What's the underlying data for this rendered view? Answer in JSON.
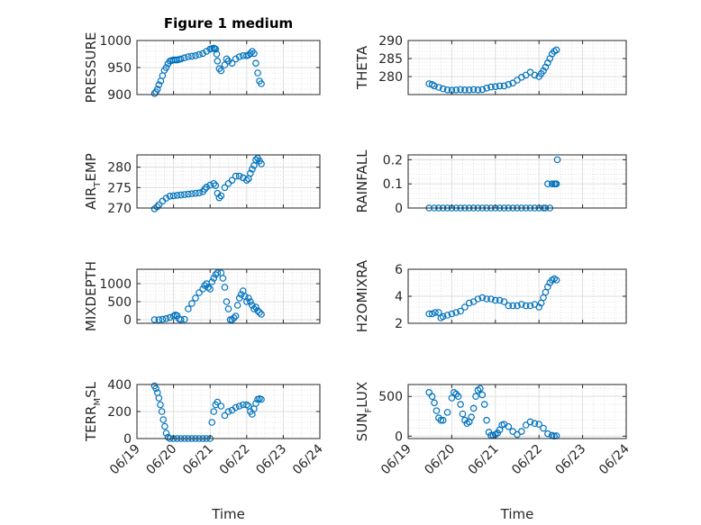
{
  "chart_data": [
    {
      "type": "scatter",
      "title": "Figure 1 medium",
      "ylabel": "PRESSURE",
      "ylim": [
        900,
        1000
      ],
      "yticks": [
        "900",
        "950",
        "1000"
      ],
      "yticks_values": [
        900,
        950,
        1000
      ],
      "x": [
        0.48,
        0.52,
        0.56,
        0.6,
        0.65,
        0.7,
        0.75,
        0.8,
        0.85,
        0.9,
        0.95,
        1.0,
        1.05,
        1.1,
        1.15,
        1.2,
        1.3,
        1.4,
        1.5,
        1.6,
        1.7,
        1.8,
        1.9,
        2.0,
        2.05,
        2.1,
        2.12,
        2.15,
        2.18,
        2.2,
        2.25,
        2.3,
        2.4,
        2.45,
        2.5,
        2.6,
        2.7,
        2.8,
        2.9,
        3.0,
        3.05,
        3.1,
        3.15,
        3.2,
        3.25,
        3.3,
        3.35,
        3.4
      ],
      "y": [
        902,
        905,
        910,
        918,
        925,
        935,
        945,
        950,
        957,
        962,
        963,
        964,
        964,
        964,
        965,
        966,
        968,
        970,
        971,
        972,
        974,
        976,
        980,
        984,
        985,
        986,
        985,
        984,
        975,
        962,
        948,
        944,
        955,
        966,
        962,
        958,
        966,
        970,
        972,
        972,
        973,
        976,
        980,
        976,
        958,
        940,
        925,
        920
      ],
      "color": "#0072BD",
      "grid": true
    },
    {
      "type": "scatter",
      "ylabel": "THETA",
      "ylim": [
        275,
        290
      ],
      "yticks": [
        "280",
        "285",
        "290"
      ],
      "yticks_values": [
        280,
        285,
        290
      ],
      "x": [
        0.48,
        0.55,
        0.6,
        0.7,
        0.8,
        0.9,
        1.0,
        1.1,
        1.2,
        1.3,
        1.4,
        1.5,
        1.6,
        1.7,
        1.8,
        1.9,
        2.0,
        2.1,
        2.2,
        2.3,
        2.4,
        2.5,
        2.6,
        2.7,
        2.8,
        2.9,
        3.0,
        3.05,
        3.1,
        3.15,
        3.2,
        3.25,
        3.3,
        3.35,
        3.4
      ],
      "y": [
        278,
        277.8,
        277.4,
        277,
        276.6,
        276.3,
        276.2,
        276.3,
        276.4,
        276.3,
        276.3,
        276.4,
        276.3,
        276.4,
        276.8,
        277.1,
        277.2,
        277.4,
        277.4,
        277.8,
        278.2,
        279,
        279.8,
        280.4,
        281.2,
        280.4,
        280,
        280.8,
        281.6,
        282.6,
        283.8,
        285,
        286.3,
        287,
        287.4
      ],
      "color": "#0072BD",
      "grid": true
    },
    {
      "type": "scatter",
      "ylabel": "AIR_TEMP",
      "ylabel_main": "AIR",
      "ylabel_sub": "T",
      "ylabel_rest": "EMP",
      "ylim": [
        270,
        283
      ],
      "yticks": [
        "270",
        "275",
        "280"
      ],
      "yticks_values": [
        270,
        275,
        280
      ],
      "x": [
        0.48,
        0.55,
        0.6,
        0.7,
        0.8,
        0.9,
        1.0,
        1.1,
        1.2,
        1.3,
        1.4,
        1.5,
        1.6,
        1.7,
        1.8,
        1.85,
        1.9,
        2.0,
        2.1,
        2.15,
        2.2,
        2.25,
        2.3,
        2.4,
        2.5,
        2.6,
        2.7,
        2.8,
        2.9,
        3.0,
        3.05,
        3.1,
        3.15,
        3.2,
        3.25,
        3.3,
        3.35,
        3.4
      ],
      "y": [
        269.8,
        270.3,
        270.8,
        271.7,
        272.4,
        272.9,
        273,
        273.1,
        273.2,
        273.3,
        273.4,
        273.5,
        273.6,
        273.7,
        274,
        274.6,
        275.1,
        275.6,
        276,
        275.5,
        273.6,
        272.5,
        273,
        275,
        276,
        276.8,
        277.8,
        277.8,
        277.4,
        276.8,
        277.2,
        278.5,
        279.5,
        280.4,
        281.8,
        282.2,
        281.5,
        280.8
      ],
      "color": "#0072BD",
      "grid": true
    },
    {
      "type": "scatter",
      "ylabel": "RAINFALL",
      "ylim": [
        0,
        0.22
      ],
      "yticks": [
        "0",
        "0.1",
        "0.2"
      ],
      "yticks_values": [
        0,
        0.1,
        0.2
      ],
      "x": [
        0.48,
        0.6,
        0.7,
        0.8,
        0.9,
        1.0,
        1.1,
        1.2,
        1.3,
        1.4,
        1.5,
        1.6,
        1.7,
        1.8,
        1.9,
        2.0,
        2.1,
        2.2,
        2.3,
        2.4,
        2.5,
        2.6,
        2.7,
        2.8,
        2.9,
        3.0,
        3.1,
        3.15,
        3.2,
        3.25,
        3.3,
        3.35,
        3.38,
        3.4,
        3.42
      ],
      "y": [
        0,
        0,
        0,
        0,
        0,
        0,
        0,
        0,
        0,
        0,
        0,
        0,
        0,
        0,
        0,
        0,
        0,
        0,
        0,
        0,
        0,
        0,
        0,
        0,
        0,
        0,
        0,
        0,
        0.1,
        0,
        0.1,
        0.1,
        0.1,
        0.1,
        0.2
      ],
      "color": "#0072BD",
      "grid": true
    },
    {
      "type": "scatter",
      "ylabel": "MIXDEPTH",
      "ylim": [
        -100,
        1400
      ],
      "yticks": [
        "0",
        "500",
        "1000"
      ],
      "yticks_values": [
        0,
        500,
        1000
      ],
      "x": [
        0.48,
        0.6,
        0.7,
        0.8,
        0.9,
        1.0,
        1.05,
        1.1,
        1.15,
        1.2,
        1.3,
        1.4,
        1.5,
        1.6,
        1.7,
        1.8,
        1.85,
        1.9,
        1.95,
        2.0,
        2.05,
        2.1,
        2.15,
        2.2,
        2.3,
        2.35,
        2.4,
        2.45,
        2.5,
        2.55,
        2.6,
        2.65,
        2.7,
        2.75,
        2.8,
        2.85,
        2.9,
        2.95,
        3.0,
        3.05,
        3.1,
        3.15,
        3.2,
        3.25,
        3.3,
        3.35,
        3.4
      ],
      "y": [
        0,
        0,
        10,
        30,
        60,
        100,
        130,
        110,
        20,
        0,
        10,
        300,
        450,
        600,
        750,
        850,
        950,
        1000,
        900,
        850,
        1050,
        1150,
        1250,
        1300,
        1300,
        1150,
        900,
        500,
        300,
        0,
        0,
        50,
        100,
        400,
        600,
        700,
        800,
        650,
        500,
        600,
        500,
        400,
        300,
        350,
        250,
        200,
        150
      ],
      "color": "#0072BD",
      "grid": true
    },
    {
      "type": "scatter",
      "ylabel": "H2OMIXRA",
      "ylim": [
        2,
        6
      ],
      "yticks": [
        "2",
        "4",
        "6"
      ],
      "yticks_values": [
        2,
        4,
        6
      ],
      "x": [
        0.48,
        0.55,
        0.62,
        0.7,
        0.75,
        0.8,
        0.9,
        1.0,
        1.1,
        1.2,
        1.3,
        1.4,
        1.5,
        1.6,
        1.7,
        1.8,
        1.9,
        2.0,
        2.1,
        2.2,
        2.3,
        2.4,
        2.5,
        2.6,
        2.7,
        2.8,
        2.9,
        3.0,
        3.05,
        3.1,
        3.15,
        3.2,
        3.25,
        3.3,
        3.35,
        3.4
      ],
      "y": [
        2.7,
        2.7,
        2.8,
        2.8,
        2.4,
        2.5,
        2.6,
        2.7,
        2.8,
        2.9,
        3.2,
        3.5,
        3.6,
        3.8,
        3.9,
        3.8,
        3.8,
        3.7,
        3.7,
        3.6,
        3.3,
        3.3,
        3.3,
        3.4,
        3.3,
        3.3,
        3.4,
        3.2,
        3.5,
        3.9,
        4.3,
        4.7,
        5.0,
        5.2,
        5.3,
        5.2
      ],
      "color": "#0072BD",
      "grid": true
    },
    {
      "type": "scatter",
      "ylabel": "TERR_MSL",
      "ylabel_main": "TERR",
      "ylabel_sub": "M",
      "ylabel_rest": "SL",
      "ylim": [
        0,
        400
      ],
      "yticks": [
        "0",
        "200",
        "400"
      ],
      "yticks_values": [
        0,
        200,
        400
      ],
      "x": [
        0.48,
        0.52,
        0.56,
        0.6,
        0.64,
        0.68,
        0.72,
        0.76,
        0.8,
        0.85,
        0.9,
        1.0,
        1.1,
        1.2,
        1.3,
        1.4,
        1.5,
        1.6,
        1.7,
        1.8,
        1.9,
        2.0,
        2.05,
        2.1,
        2.15,
        2.2,
        2.3,
        2.4,
        2.5,
        2.6,
        2.7,
        2.8,
        2.9,
        3.0,
        3.05,
        3.1,
        3.15,
        3.2,
        3.25,
        3.3,
        3.35,
        3.4
      ],
      "y": [
        390,
        370,
        340,
        300,
        250,
        200,
        140,
        90,
        40,
        10,
        0,
        0,
        0,
        0,
        0,
        0,
        0,
        0,
        0,
        0,
        0,
        0,
        120,
        200,
        250,
        270,
        240,
        170,
        200,
        210,
        230,
        240,
        250,
        250,
        240,
        200,
        180,
        220,
        260,
        290,
        295,
        290
      ],
      "color": "#0072BD",
      "grid": true
    },
    {
      "type": "scatter",
      "ylabel": "SUN_FLUX",
      "ylabel_main": "SUN",
      "ylabel_sub": "F",
      "ylabel_rest": "LUX",
      "ylim": [
        -30,
        650
      ],
      "yticks": [
        "0",
        "500"
      ],
      "yticks_values": [
        0,
        500
      ],
      "x": [
        0.48,
        0.55,
        0.6,
        0.65,
        0.7,
        0.75,
        0.8,
        0.9,
        1.0,
        1.05,
        1.1,
        1.15,
        1.2,
        1.25,
        1.3,
        1.35,
        1.4,
        1.45,
        1.5,
        1.55,
        1.6,
        1.65,
        1.7,
        1.75,
        1.8,
        1.85,
        1.9,
        1.95,
        2.0,
        2.05,
        2.1,
        2.15,
        2.2,
        2.3,
        2.4,
        2.5,
        2.6,
        2.7,
        2.8,
        2.9,
        3.0,
        3.1,
        3.2,
        3.3,
        3.35,
        3.4
      ],
      "y": [
        550,
        500,
        420,
        320,
        230,
        200,
        200,
        300,
        480,
        550,
        530,
        500,
        400,
        280,
        200,
        160,
        180,
        240,
        350,
        500,
        580,
        600,
        520,
        400,
        200,
        50,
        10,
        10,
        20,
        40,
        80,
        140,
        150,
        120,
        60,
        20,
        60,
        140,
        180,
        160,
        150,
        100,
        30,
        10,
        0,
        5
      ],
      "color": "#0072BD",
      "grid": true
    }
  ],
  "shared_axis": {
    "xlabel": "Time",
    "xlim": [
      0,
      5
    ],
    "xticks": [
      "06/19",
      "06/20",
      "06/21",
      "06/22",
      "06/23",
      "06/24"
    ]
  }
}
